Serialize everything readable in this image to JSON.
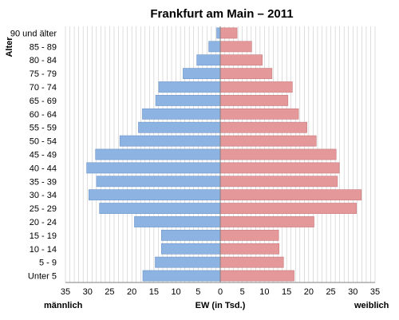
{
  "chart_data": {
    "type": "bar",
    "orientation": "horizontal",
    "title": "Frankfurt am Main – 2011",
    "ylabel": "Alter",
    "xlabel": "EW (in Tsd.)",
    "xlabel_left": "männlich",
    "xlabel_right": "weiblich",
    "categories": [
      "90 und älter",
      "85 - 89",
      "80 - 84",
      "75 - 79",
      "70 - 74",
      "65 - 69",
      "60 - 64",
      "55 - 59",
      "50 - 54",
      "45 - 49",
      "40 - 44",
      "35 - 39",
      "30 - 34",
      "25 - 29",
      "20 - 24",
      "15 - 19",
      "10 - 14",
      "5 - 9",
      "Unter 5"
    ],
    "series": [
      {
        "name": "männlich",
        "values": [
          0.8,
          2.6,
          5.3,
          8.4,
          13.9,
          14.6,
          17.6,
          18.5,
          22.7,
          28.2,
          30.2,
          28.0,
          29.7,
          27.3,
          19.4,
          13.3,
          13.3,
          14.7,
          17.5
        ]
      },
      {
        "name": "weiblich",
        "values": [
          3.8,
          7.1,
          9.5,
          11.7,
          16.3,
          15.3,
          17.7,
          19.6,
          21.7,
          26.2,
          26.9,
          26.5,
          31.9,
          30.8,
          21.2,
          13.2,
          13.3,
          14.3,
          16.7
        ]
      }
    ],
    "xticks": [
      35,
      30,
      25,
      20,
      15,
      10,
      5,
      0,
      5,
      10,
      15,
      20,
      25,
      30,
      35
    ],
    "xlim": [
      -35,
      35
    ],
    "grid": true,
    "colors": {
      "male": "#8DB3E2",
      "male_edge": "#6E96C8",
      "female": "#E4989A",
      "female_edge": "#C87C7E",
      "grid": "#C8C8C8",
      "axis": "#808080"
    }
  }
}
